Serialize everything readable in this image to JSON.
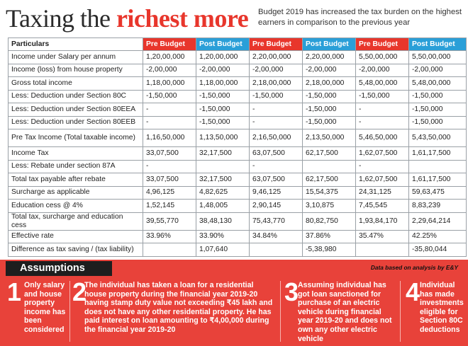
{
  "header": {
    "title_part1": "Taxing the",
    "title_part2": "richest more",
    "subtitle": "Budget 2019 has increased the tax burden on the highest earners in comparison to the previous year"
  },
  "table": {
    "columns": [
      "Particulars",
      "Pre Budget",
      "Post Budget",
      "Pre Budget",
      "Post Budget",
      "Pre Budget",
      "Post Budget"
    ],
    "rows": [
      [
        "Income under Salary per annum",
        "1,20,00,000",
        "1,20,00,000",
        "2,20,00,000",
        "2,20,00,000",
        "5,50,00,000",
        "5,50,00,000"
      ],
      [
        "Income (loss) from house property",
        "-2,00,000",
        "-2,00,000",
        "-2,00,000",
        "-2,00,000",
        "-2,00,000",
        "-2,00,000"
      ],
      [
        "Gross total income",
        "1,18,00,000",
        "1,18,00,000",
        "2,18,00,000",
        "2,18,00,000",
        "5,48,00,000",
        "5,48,00,000"
      ],
      [
        "Less: Deduction under Section 80C",
        "-1,50,000",
        "-1,50,000",
        "-1,50,000",
        "-1,50,000",
        "-1,50,000",
        "-1,50,000"
      ],
      [
        "Less: Deduction under Section 80EEA",
        "-",
        "-1,50,000",
        "-",
        "-1,50,000",
        "-",
        "-1,50,000"
      ],
      [
        "Less: Deduction under Section 80EEB",
        "-",
        "-1,50,000",
        "-",
        "-1,50,000",
        "-",
        "-1,50,000"
      ],
      [
        "Pre Tax Income (Total taxable income)",
        "1,16,50,000",
        "1,13,50,000",
        "2,16,50,000",
        "2,13,50,000",
        "5,46,50,000",
        "5,43,50,000"
      ],
      [
        "Income Tax",
        "33,07,500",
        "32,17,500",
        "63,07,500",
        "62,17,500",
        "1,62,07,500",
        "1,61,17,500"
      ],
      [
        "Less: Rebate under section 87A",
        "-",
        "",
        "-",
        "",
        "-",
        ""
      ],
      [
        "Total tax payable after rebate",
        "33,07,500",
        "32,17,500",
        "63,07,500",
        "62,17,500",
        "1,62,07,500",
        "1,61,17,500"
      ],
      [
        "Surcharge as applicable",
        "4,96,125",
        "4,82,625",
        "9,46,125",
        "15,54,375",
        "24,31,125",
        "59,63,475"
      ],
      [
        "Education cess @ 4%",
        "1,52,145",
        "1,48,005",
        "2,90,145",
        "3,10,875",
        "7,45,545",
        "8,83,239"
      ],
      [
        "Total tax, surcharge and education cess",
        "39,55,770",
        "38,48,130",
        "75,43,770",
        "80,82,750",
        "1,93,84,170",
        "2,29,64,214"
      ],
      [
        "Effective rate",
        "33.96%",
        "33.90%",
        "34.84%",
        "37.86%",
        "35.47%",
        "42.25%"
      ],
      [
        "Difference as tax saving / (tax liability)",
        "",
        "1,07,640",
        "",
        "-5,38,980",
        "",
        "-35,80,044"
      ]
    ]
  },
  "assumptions": {
    "title": "Assumptions",
    "source": "Data based on analysis by E&Y",
    "items": [
      {
        "number": "1",
        "text": "Only salary and house property income has been considered"
      },
      {
        "number": "2",
        "text": "The individual has taken a loan for a residential house property during the financial year 2019-20 having stamp duty value not exceeding ₹45 lakh and does not have any other residential property. He has paid interest on loan amounting to ₹4,00,000 during the financial year 2019-20"
      },
      {
        "number": "3",
        "text": "Assuming individual has got loan sanctioned for purchase of an electric vehicle during financial year 2019-20 and does not own any other electric vehicle"
      },
      {
        "number": "4",
        "text": "Individual has made investments eligible for Section 80C deductions"
      }
    ]
  }
}
